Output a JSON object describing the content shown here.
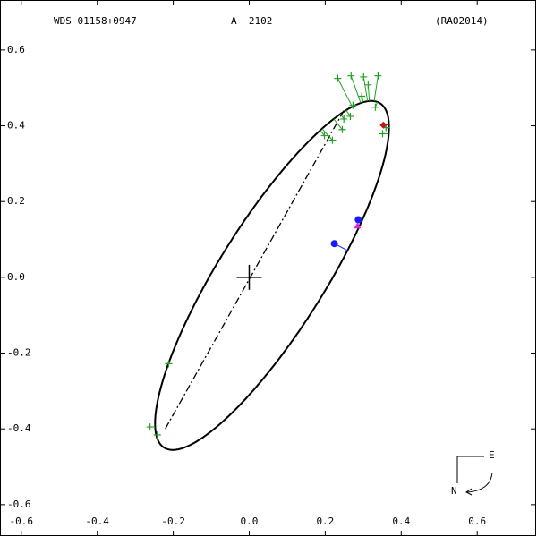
{
  "chart_data": {
    "type": "orbit",
    "title": "WDS 01158+0947",
    "subtitle": "A  2102",
    "reference": "(RAO2014)",
    "compass": {
      "east": "E",
      "north": "N"
    },
    "xlim": [
      -0.656,
      0.755
    ],
    "ylim": [
      -0.683,
      0.732
    ],
    "xticks": [
      -0.6,
      -0.4,
      -0.2,
      {
        "value": 0,
        "label": "0.0"
      },
      0.2,
      0.4,
      0.6
    ],
    "yticks": [
      -0.6,
      -0.4,
      -0.2,
      {
        "value": 0,
        "label": "0.0"
      },
      0.2,
      0.4,
      0.6
    ],
    "orbit": {
      "center": [
        0.06,
        0.005
      ],
      "a": 0.536,
      "b": 0.14,
      "angle": 58,
      "color": "#000000"
    },
    "line_of_nodes": {
      "x": [
        -0.221,
        0.249
      ],
      "y": [
        -0.4,
        0.44
      ]
    },
    "series": [
      {
        "marker": "plus",
        "color": "#22a022",
        "x": [
          0.233,
          0.268,
          0.301,
          0.339,
          0.313,
          0.296,
          0.273,
          0.245,
          0.219,
          0.198,
          0.332,
          0.36,
          0.266,
          0.249,
          -0.212,
          -0.261,
          -0.242,
          0.351
        ],
        "y": [
          0.525,
          0.532,
          0.529,
          0.532,
          0.508,
          0.478,
          0.454,
          0.39,
          0.362,
          0.374,
          0.449,
          0.395,
          0.425,
          0.418,
          -0.228,
          -0.395,
          -0.416,
          0.379
        ]
      },
      {
        "marker": "circle",
        "color": "#1a1aff",
        "x": [
          0.224,
          0.287
        ],
        "y": [
          0.089,
          0.152
        ]
      },
      {
        "marker": "triangle",
        "color": "#e020e0",
        "x": [
          0.285
        ],
        "y": [
          0.136
        ]
      },
      {
        "marker": "diamond",
        "color": "#c01818",
        "x": [
          0.353
        ],
        "y": [
          0.402
        ]
      }
    ]
  }
}
